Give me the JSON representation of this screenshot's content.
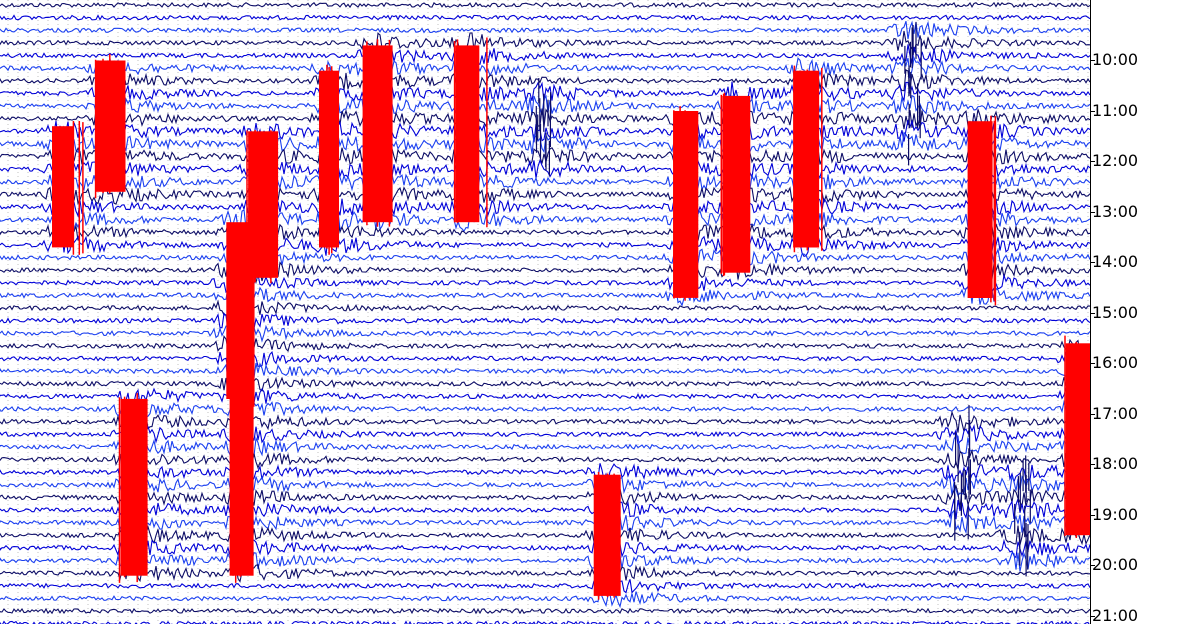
{
  "chart_data": {
    "type": "line",
    "title": "",
    "xlabel": "",
    "ylabel": "",
    "y_ticks": [
      "10:00",
      "11:00",
      "12:00",
      "13:00",
      "14:00",
      "15:00",
      "16:00",
      "17:00",
      "18:00",
      "19:00",
      "20:00",
      "21:00"
    ],
    "first_trace_hour": 9.5,
    "traces_per_hour": 4,
    "trace_count": 50,
    "colors": [
      "#0c0c66",
      "#0000d8",
      "#1a3ff0"
    ],
    "clip_color": "#ff0000",
    "grid": true,
    "events": [
      {
        "start_hour": 10.6,
        "end_hour": 13.2,
        "x": 0.095,
        "clipped": true
      },
      {
        "start_hour": 11.9,
        "end_hour": 14.3,
        "x": 0.055,
        "clipped": true
      },
      {
        "start_hour": 14.7,
        "end_hour": 16.5,
        "x": 0.21,
        "clipped": false
      },
      {
        "start_hour": 13.8,
        "end_hour": 17.3,
        "x": 0.215,
        "clipped": true
      },
      {
        "start_hour": 12.0,
        "end_hour": 14.9,
        "x": 0.235,
        "clipped": true
      },
      {
        "start_hour": 10.8,
        "end_hour": 14.3,
        "x": 0.3,
        "clipped": true
      },
      {
        "start_hour": 10.3,
        "end_hour": 13.8,
        "x": 0.34,
        "clipped": true
      },
      {
        "start_hour": 10.3,
        "end_hour": 13.8,
        "x": 0.425,
        "clipped": true
      },
      {
        "start_hour": 11.1,
        "end_hour": 12.9,
        "x": 0.49,
        "clipped": false
      },
      {
        "start_hour": 11.6,
        "end_hour": 15.3,
        "x": 0.625,
        "clipped": true
      },
      {
        "start_hour": 11.3,
        "end_hour": 14.8,
        "x": 0.67,
        "clipped": true
      },
      {
        "start_hour": 10.8,
        "end_hour": 14.3,
        "x": 0.735,
        "clipped": true
      },
      {
        "start_hour": 10.0,
        "end_hour": 12.3,
        "x": 0.83,
        "clipped": false
      },
      {
        "start_hour": 11.8,
        "end_hour": 15.3,
        "x": 0.895,
        "clipped": true
      },
      {
        "start_hour": 17.3,
        "end_hour": 20.8,
        "x": 0.118,
        "clipped": true
      },
      {
        "start_hour": 17.3,
        "end_hour": 20.8,
        "x": 0.218,
        "clipped": true
      },
      {
        "start_hour": 17.7,
        "end_hour": 19.8,
        "x": 0.875,
        "clipped": false
      },
      {
        "start_hour": 18.7,
        "end_hour": 20.5,
        "x": 0.93,
        "clipped": false
      },
      {
        "start_hour": 16.2,
        "end_hour": 20.0,
        "x": 0.985,
        "clipped": true
      },
      {
        "start_hour": 18.8,
        "end_hour": 21.2,
        "x": 0.552,
        "clipped": true
      }
    ]
  }
}
